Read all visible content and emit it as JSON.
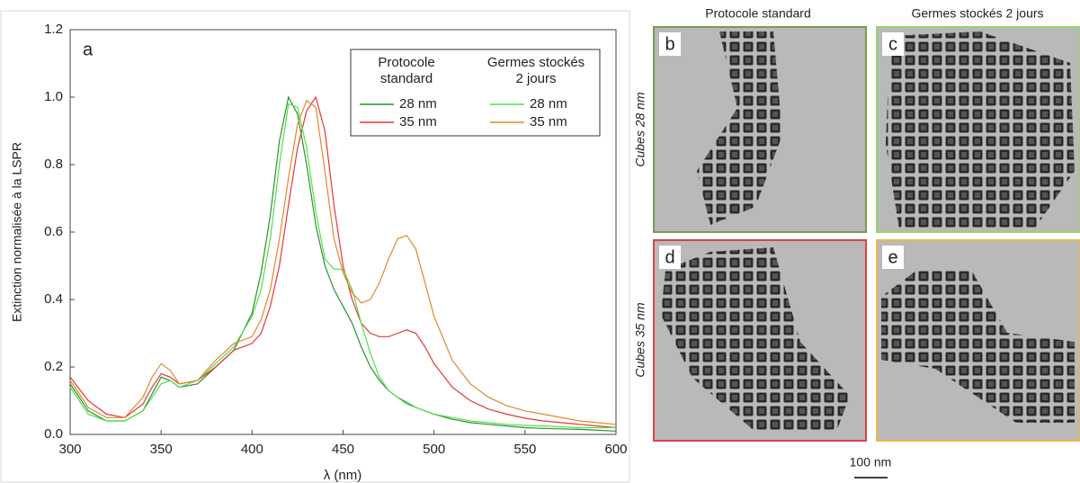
{
  "chart_data": {
    "type": "line",
    "annotation": "a",
    "x_label": "λ (nm)",
    "y_label": "Extinction normalisée à la LSPR",
    "x": [
      300,
      310,
      320,
      330,
      340,
      345,
      350,
      355,
      360,
      370,
      380,
      390,
      400,
      405,
      410,
      415,
      420,
      425,
      430,
      435,
      440,
      445,
      450,
      455,
      460,
      465,
      470,
      475,
      480,
      485,
      490,
      495,
      500,
      510,
      520,
      530,
      540,
      550,
      560,
      580,
      600
    ],
    "series": [
      {
        "name": "28 nm",
        "color": "#2f8f2f",
        "values": [
          0.15,
          0.07,
          0.04,
          0.04,
          0.07,
          0.12,
          0.17,
          0.16,
          0.14,
          0.15,
          0.2,
          0.25,
          0.36,
          0.48,
          0.65,
          0.87,
          1.0,
          0.95,
          0.8,
          0.62,
          0.5,
          0.43,
          0.38,
          0.33,
          0.26,
          0.2,
          0.16,
          0.13,
          0.11,
          0.095,
          0.08,
          0.07,
          0.06,
          0.045,
          0.035,
          0.03,
          0.025,
          0.02,
          0.018,
          0.015,
          0.01
        ]
      },
      {
        "name": "35 nm",
        "color": "#e83535",
        "values": [
          0.17,
          0.1,
          0.06,
          0.05,
          0.09,
          0.14,
          0.18,
          0.17,
          0.15,
          0.16,
          0.2,
          0.25,
          0.27,
          0.3,
          0.38,
          0.5,
          0.68,
          0.85,
          0.96,
          1.0,
          0.9,
          0.68,
          0.5,
          0.4,
          0.33,
          0.3,
          0.29,
          0.29,
          0.3,
          0.31,
          0.3,
          0.26,
          0.21,
          0.14,
          0.1,
          0.075,
          0.06,
          0.048,
          0.04,
          0.03,
          0.02
        ]
      },
      {
        "name": "28 nm",
        "color": "#4fe04f",
        "values": [
          0.14,
          0.06,
          0.04,
          0.04,
          0.07,
          0.11,
          0.15,
          0.16,
          0.14,
          0.16,
          0.21,
          0.26,
          0.35,
          0.43,
          0.58,
          0.8,
          0.98,
          0.97,
          0.85,
          0.66,
          0.52,
          0.49,
          0.49,
          0.43,
          0.33,
          0.24,
          0.17,
          0.13,
          0.11,
          0.09,
          0.08,
          0.07,
          0.06,
          0.05,
          0.04,
          0.035,
          0.03,
          0.027,
          0.025,
          0.02,
          0.02
        ]
      },
      {
        "name": "35 nm",
        "color": "#e0892c",
        "values": [
          0.16,
          0.08,
          0.05,
          0.05,
          0.11,
          0.17,
          0.21,
          0.19,
          0.15,
          0.16,
          0.22,
          0.27,
          0.29,
          0.34,
          0.43,
          0.58,
          0.76,
          0.92,
          0.99,
          0.97,
          0.78,
          0.58,
          0.48,
          0.42,
          0.39,
          0.4,
          0.45,
          0.52,
          0.58,
          0.59,
          0.55,
          0.45,
          0.35,
          0.22,
          0.15,
          0.11,
          0.085,
          0.07,
          0.06,
          0.04,
          0.03
        ]
      }
    ],
    "legend_groups": [
      [
        "Protocole",
        "standard"
      ],
      [
        "Germes stockés",
        "2 jours"
      ]
    ],
    "legend": "upper right",
    "xlim": [
      300,
      600
    ],
    "xticks": [
      300,
      350,
      400,
      450,
      500,
      550,
      600
    ],
    "ylim": [
      0,
      1.2
    ],
    "yticks": [
      {
        "value": 0,
        "label": "0.0"
      },
      {
        "value": 0.2,
        "label": "0.2"
      },
      {
        "value": 0.4,
        "label": "0.4"
      },
      {
        "value": 0.6,
        "label": "0.6"
      },
      {
        "value": 0.8,
        "label": "0.8"
      },
      {
        "value": 1,
        "label": "1.0"
      },
      {
        "value": 1.2,
        "label": "1.2"
      }
    ]
  },
  "images": {
    "column_titles": [
      "Protocole standard",
      "Germes stockés 2 jours"
    ],
    "row_titles": [
      "Cubes 28 nm",
      "Cubes  35 nm"
    ],
    "panels": [
      {
        "label": "b"
      },
      {
        "label": "c"
      },
      {
        "label": "d"
      },
      {
        "label": "e"
      }
    ],
    "scale_bar": "100 nm"
  }
}
